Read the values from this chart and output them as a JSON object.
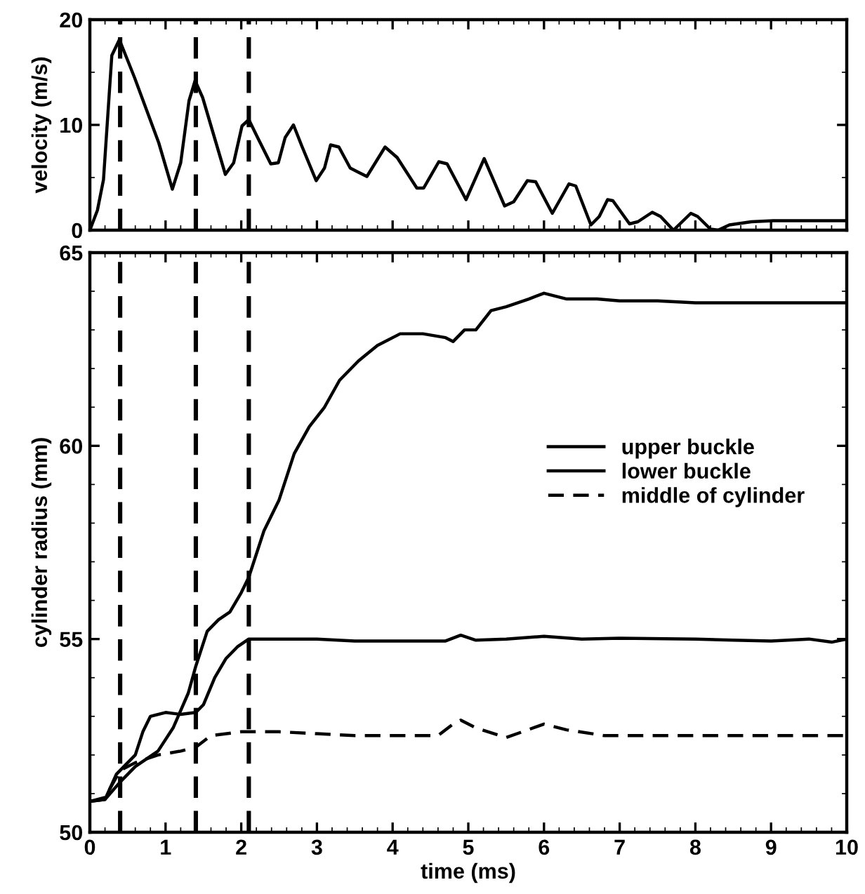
{
  "chart_data": [
    {
      "type": "line",
      "ylabel": "velocity (m/s)",
      "xlim": [
        0,
        10
      ],
      "ylim": [
        0,
        20
      ],
      "yticks": [
        0,
        10,
        20
      ],
      "xticks": [
        0,
        1,
        2,
        3,
        4,
        5,
        6,
        7,
        8,
        9,
        10
      ],
      "tick_labels": "y",
      "grid": false,
      "legend": false,
      "line_style": "solid",
      "marker": "none",
      "series": [
        {
          "color": "#000000",
          "x": [
            0,
            0.1,
            0.18,
            0.29,
            0.39,
            0.59,
            0.91,
            1.09,
            1.2,
            1.31,
            1.39,
            1.49,
            1.79,
            1.9,
            2.01,
            2.1,
            2.23,
            2.39,
            2.49,
            2.58,
            2.69,
            2.8,
            2.99,
            3.1,
            3.18,
            3.29,
            3.44,
            3.66,
            3.9,
            4.06,
            4.32,
            4.41,
            4.61,
            4.72,
            4.97,
            5.21,
            5.48,
            5.6,
            5.78,
            5.89,
            6.11,
            6.33,
            6.42,
            6.62,
            6.73,
            6.84,
            6.91,
            7.13,
            7.24,
            7.43,
            7.54,
            7.71,
            7.94,
            8.03,
            8.2,
            8.3,
            8.45,
            8.74,
            9.03,
            10
          ],
          "values": [
            0,
            1.9,
            4.8,
            16.6,
            18.1,
            14.5,
            8.3,
            3.9,
            6.4,
            12.3,
            14.2,
            12.6,
            5.3,
            6.4,
            9.9,
            10.5,
            8.6,
            6.3,
            6.4,
            8.8,
            10,
            8,
            4.7,
            5.9,
            8.1,
            7.9,
            5.9,
            5.1,
            7.9,
            6.9,
            4,
            4,
            6.5,
            6.3,
            2.9,
            6.8,
            2.3,
            2.7,
            4.7,
            4.6,
            1.6,
            4.4,
            4.2,
            0.5,
            1.3,
            2.9,
            2.8,
            0.6,
            0.8,
            1.7,
            1.3,
            0,
            1.6,
            1.3,
            0.1,
            0,
            0.5,
            0.8,
            0.9,
            0.9
          ]
        }
      ],
      "ref_lines": [
        {
          "axis": "x",
          "value": 0.4,
          "color": "#000000",
          "line_style": "dashed"
        },
        {
          "axis": "x",
          "value": 1.4,
          "color": "#000000",
          "line_style": "dashed"
        },
        {
          "axis": "x",
          "value": 2.1,
          "color": "#000000",
          "line_style": "dashed"
        }
      ]
    },
    {
      "type": "line",
      "xlabel": "time (ms)",
      "ylabel": "cylinder radius (mm)",
      "xlim": [
        0,
        10
      ],
      "ylim": [
        50,
        65
      ],
      "xticks": [
        0,
        1,
        2,
        3,
        4,
        5,
        6,
        7,
        8,
        9,
        10
      ],
      "yticks": [
        50,
        55,
        60,
        65
      ],
      "grid": false,
      "legend": "right",
      "marker": "none",
      "series": [
        {
          "name": "upper buckle",
          "color": "#000000",
          "line_style": "solid",
          "x": [
            0,
            0.2,
            0.4,
            0.6,
            0.9,
            1.1,
            1.3,
            1.4,
            1.55,
            1.7,
            1.85,
            2.0,
            2.1,
            2.3,
            2.5,
            2.7,
            2.9,
            3.1,
            3.3,
            3.55,
            3.8,
            4.1,
            4.4,
            4.7,
            4.8,
            4.95,
            5.1,
            5.3,
            5.5,
            5.8,
            6.0,
            6.3,
            6.7,
            7.0,
            7.5,
            8,
            9,
            10
          ],
          "values": [
            50.8,
            50.85,
            51.3,
            51.7,
            52.1,
            52.7,
            53.6,
            54.3,
            55.2,
            55.5,
            55.7,
            56.2,
            56.6,
            57.8,
            58.6,
            59.8,
            60.5,
            61.0,
            61.7,
            62.2,
            62.6,
            62.9,
            62.9,
            62.8,
            62.7,
            63.0,
            63.0,
            63.5,
            63.6,
            63.8,
            63.95,
            63.8,
            63.8,
            63.75,
            63.75,
            63.7,
            63.7,
            63.7
          ]
        },
        {
          "name": "lower buckle",
          "color": "#000000",
          "line_style": "solid",
          "x": [
            0,
            0.2,
            0.35,
            0.45,
            0.6,
            0.7,
            0.8,
            1.0,
            1.2,
            1.4,
            1.5,
            1.65,
            1.8,
            1.95,
            2.1,
            2.5,
            3,
            3.5,
            4,
            4.7,
            4.9,
            5.1,
            5.5,
            6.0,
            6.5,
            7,
            8,
            8.5,
            9,
            9.5,
            9.8,
            10
          ],
          "values": [
            50.8,
            50.85,
            51.5,
            51.7,
            52.0,
            52.6,
            53.0,
            53.1,
            53.05,
            53.1,
            53.3,
            54.0,
            54.5,
            54.8,
            55.0,
            55.0,
            55.0,
            54.95,
            54.95,
            54.95,
            55.1,
            54.97,
            55.0,
            55.07,
            55.0,
            55.02,
            55.0,
            54.97,
            54.95,
            55.0,
            54.92,
            55.0
          ]
        },
        {
          "name": "middle of cylinder",
          "color": "#000000",
          "line_style": "dashed",
          "x": [
            0,
            0.2,
            0.4,
            0.6,
            0.9,
            1.2,
            1.4,
            1.6,
            2.0,
            2.5,
            3,
            3.5,
            4,
            4.6,
            4.8,
            4.9,
            5.1,
            5.5,
            6.0,
            6.3,
            6.8,
            7.3,
            8,
            8.5,
            9,
            10
          ],
          "values": [
            50.8,
            50.9,
            51.6,
            51.8,
            52.0,
            52.1,
            52.2,
            52.5,
            52.6,
            52.6,
            52.55,
            52.5,
            52.5,
            52.5,
            52.8,
            52.9,
            52.7,
            52.45,
            52.8,
            52.65,
            52.5,
            52.5,
            52.5,
            52.5,
            52.5,
            52.5
          ]
        }
      ],
      "ref_lines": [
        {
          "axis": "x",
          "value": 0.4,
          "color": "#000000",
          "line_style": "dashed"
        },
        {
          "axis": "x",
          "value": 1.4,
          "color": "#000000",
          "line_style": "dashed"
        },
        {
          "axis": "x",
          "value": 2.1,
          "color": "#000000",
          "line_style": "dashed"
        }
      ]
    }
  ]
}
